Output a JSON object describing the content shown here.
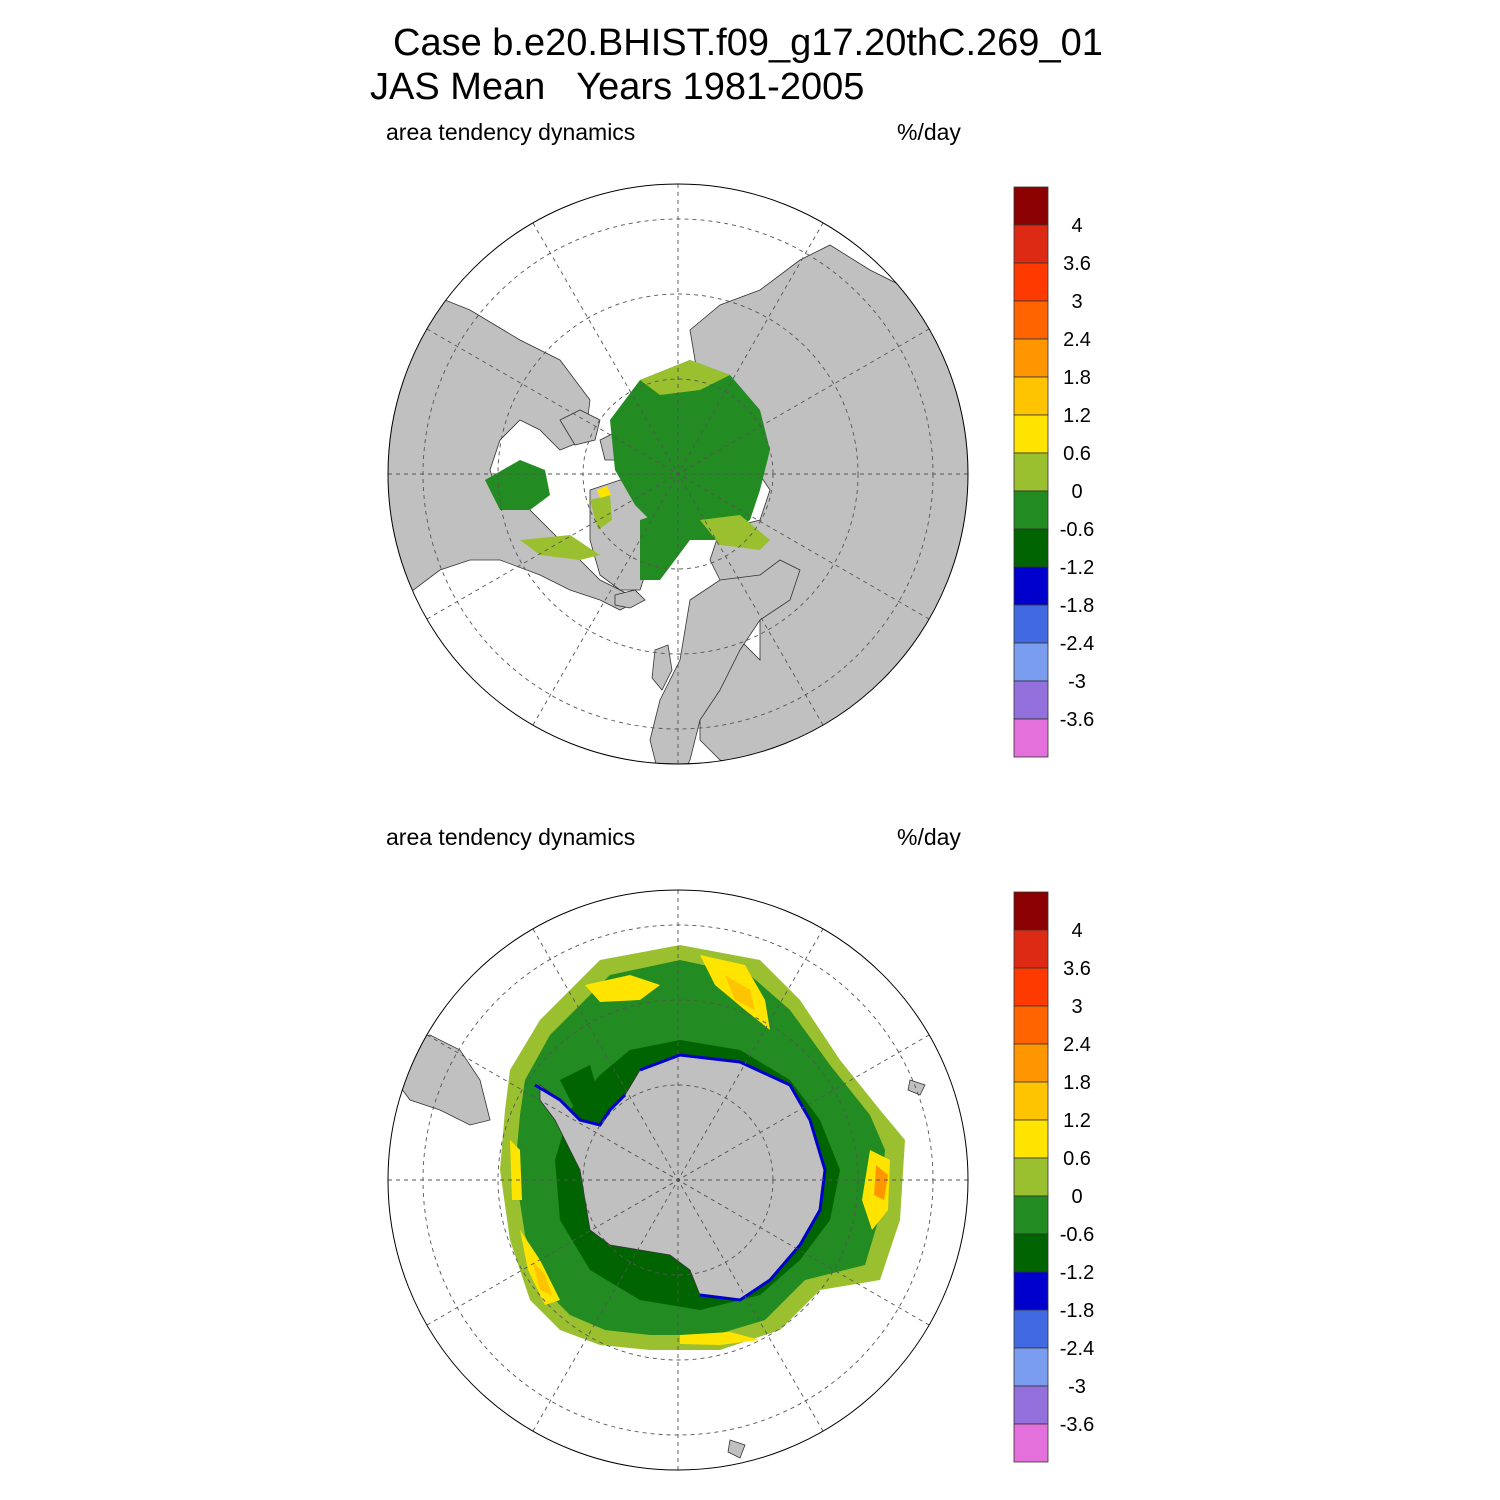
{
  "title": {
    "line1": "Case b.e20.BHIST.f09_g17.20thC.269_01",
    "line2": "JAS Mean   Years 1981-2005"
  },
  "panels": [
    {
      "id": "north",
      "hemisphere": "Northern Hemisphere polar stereographic",
      "left_label": "area tendency dynamics",
      "right_label": "%/day"
    },
    {
      "id": "south",
      "hemisphere": "Southern Hemisphere polar stereographic",
      "left_label": "area tendency dynamics",
      "right_label": "%/day"
    }
  ],
  "colorbar": {
    "labels": [
      "4",
      "3.6",
      "3",
      "2.4",
      "1.8",
      "1.2",
      "0.6",
      "0",
      "-0.6",
      "-1.2",
      "-1.8",
      "-2.4",
      "-3",
      "-3.6"
    ],
    "colors": [
      "#8b0000",
      "#dc2a14",
      "#ff3a00",
      "#ff6400",
      "#ff9600",
      "#ffc400",
      "#ffe400",
      "#9ac030",
      "#228b22",
      "#006400",
      "#0000cd",
      "#4169e1",
      "#7b9df0",
      "#9370db",
      "#e470dc"
    ]
  },
  "map_colors": {
    "land": "#c0c0c0",
    "ocean_no_ice": "#ffffff",
    "grid": "#555555"
  }
}
